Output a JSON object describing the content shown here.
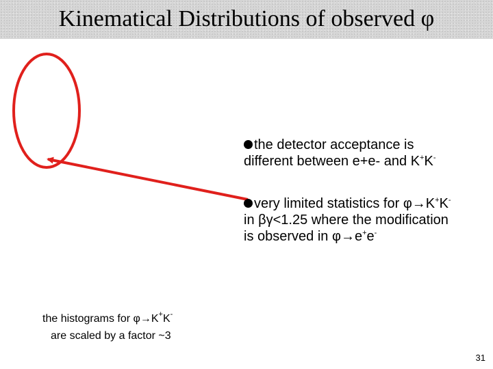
{
  "title": {
    "text": "Kinematical Distributions of observed",
    "symbol": "φ"
  },
  "annotation": {
    "color": "#e0201c"
  },
  "bullets": [
    {
      "line1": "the detector acceptance is",
      "line2_pre": "different between e+e- and K",
      "line2_sup1": "+",
      "line2_k": "K",
      "line2_sup2": "-"
    },
    {
      "line1_pre": "very limited statistics for φ",
      "arrow": "→",
      "line1_k1": "K",
      "line1_sup1": "+",
      "line1_k2": "K",
      "line1_sup2": "-",
      "line2": "in βγ<1.25 where the modification",
      "line3_pre": "is observed in φ",
      "line3_e": "e",
      "line3_sup1": "+",
      "line3_e2": "e",
      "line3_sup2": "-"
    }
  ],
  "footnote": {
    "line1_pre": "the histograms for φ",
    "arrow": "→",
    "k1": "K",
    "sup1": "+",
    "k2": "K",
    "sup2": "-",
    "line2": "are scaled by a factor ~3"
  },
  "page_number": "31"
}
